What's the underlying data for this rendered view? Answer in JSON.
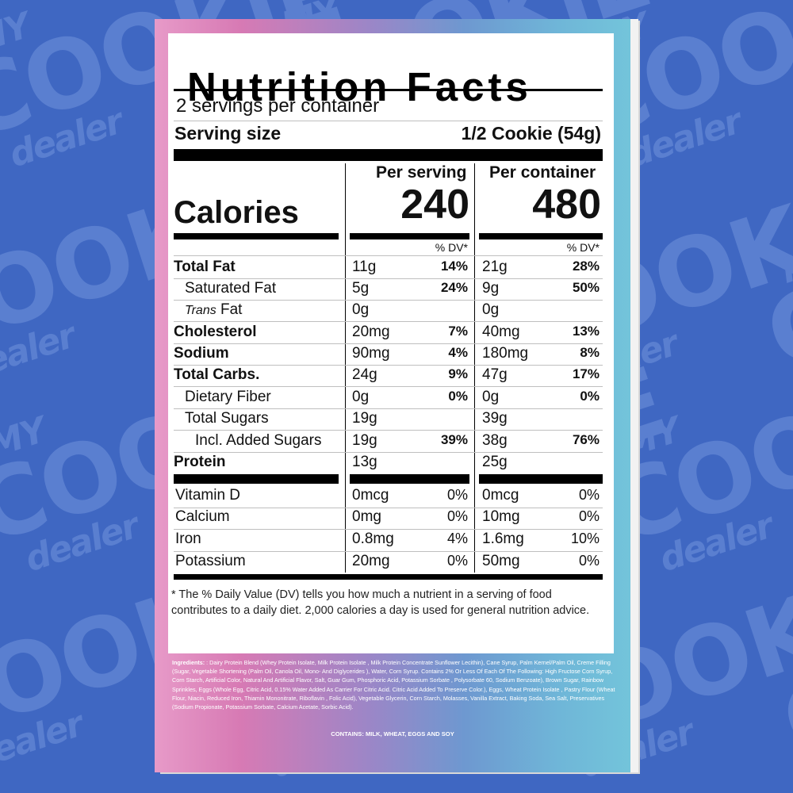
{
  "title": "Nutrition Facts",
  "servings_per_container": "2 servings per container",
  "serving_size_label": "Serving size",
  "serving_size_value": "1/2 Cookie (54g)",
  "per_serving_label": "Per serving",
  "per_container_label": "Per container",
  "calories_label": "Calories",
  "calories_serving": "240",
  "calories_container": "480",
  "dv_label": "% DV*",
  "nutrients": [
    {
      "name": "Total Fat",
      "serving": "11g",
      "serving_dv": "14%",
      "container": "21g",
      "container_dv": "28%"
    },
    {
      "name": "Saturated Fat",
      "serving": "5g",
      "serving_dv": "24%",
      "container": "9g",
      "container_dv": "50%"
    },
    {
      "name_italic": "Trans",
      "name": " Fat",
      "serving": "0g",
      "serving_dv": "",
      "container": "0g",
      "container_dv": ""
    },
    {
      "name": "Cholesterol",
      "serving": "20mg",
      "serving_dv": "7%",
      "container": "40mg",
      "container_dv": "13%"
    },
    {
      "name": "Sodium",
      "serving": "90mg",
      "serving_dv": "4%",
      "container": "180mg",
      "container_dv": "8%"
    },
    {
      "name": "Total Carbs.",
      "serving": "24g",
      "serving_dv": "9%",
      "container": "47g",
      "container_dv": "17%"
    },
    {
      "name": "Dietary Fiber",
      "serving": "0g",
      "serving_dv": "0%",
      "container": "0g",
      "container_dv": "0%"
    },
    {
      "name": "Total Sugars",
      "serving": "19g",
      "serving_dv": "",
      "container": "39g",
      "container_dv": ""
    },
    {
      "name": "Incl. Added Sugars",
      "serving": "19g",
      "serving_dv": "39%",
      "container": "38g",
      "container_dv": "76%"
    },
    {
      "name": "Protein",
      "serving": "13g",
      "serving_dv": "",
      "container": "25g",
      "container_dv": ""
    }
  ],
  "vitamins": [
    {
      "name": "Vitamin D",
      "serving": "0mcg",
      "serving_dv": "0%",
      "container": "0mcg",
      "container_dv": "0%"
    },
    {
      "name": "Calcium",
      "serving": "0mg",
      "serving_dv": "0%",
      "container": "10mg",
      "container_dv": "0%"
    },
    {
      "name": "Iron",
      "serving": "0.8mg",
      "serving_dv": "4%",
      "container": "1.6mg",
      "container_dv": "10%"
    },
    {
      "name": "Potassium",
      "serving": "20mg",
      "serving_dv": "0%",
      "container": "50mg",
      "container_dv": "0%"
    }
  ],
  "footnote": "* The % Daily Value (DV) tells you how much a nutrient in a serving of food contributes to a daily diet. 2,000 calories a day is used for general nutrition advice.",
  "ingredients_label": "Ingredients:",
  "ingredients_text": " : Dairy Protein Blend (Whey Protein Isolate, Milk Protein Isolate , Milk Protein Concentrate Sunflower Lecithin), Cane Syrup, Palm Kernel/Palm Oil, Creme Filling (Sugar, Vegetable Shortening (Palm Oil, Canola Oil, Mono- And Diglycerides ), Water, Corn Syrup. Contains 2% Or Less Of Each Of The Following: High Fructose Corn Syrup, Corn Starch, Artificial Color, Natural And Artificial Flavor, Salt, Guar Gum, Phosphoric Acid, Potassium Sorbate , Polysorbate 60, Sodium Benzoate), Brown Sugar, Rainbow Sprinkles, Eggs (Whole Egg, Citric Acid, 0.15% Water Added As Carrier For Citric Acid. Citric Acid Added To Preserve Color.), Eggs, Wheat Protein Isolate , Pastry Flour (Wheat Flour, Niacin, Reduced Iron, Thiamin Mononitrate, Riboflavin , Folic Acid), Vegetable Glycerin, Corn Starch, Molasses, Vanilla Extract, Baking Soda, Sea Salt, Preservatives (Sodium Propionate, Potassium Sorbate, Calcium Acetate, Sorbic Acid).",
  "contains": "CONTAINS: MILK, WHEAT, EGGS AND SOY",
  "background_logo": {
    "line1": "MY",
    "line2": "COOKiE",
    "line3": "dealer"
  },
  "colors": {
    "background": "#3f67c2",
    "gradient_pink": "#e79ac8",
    "gradient_blue": "#73c4da"
  }
}
